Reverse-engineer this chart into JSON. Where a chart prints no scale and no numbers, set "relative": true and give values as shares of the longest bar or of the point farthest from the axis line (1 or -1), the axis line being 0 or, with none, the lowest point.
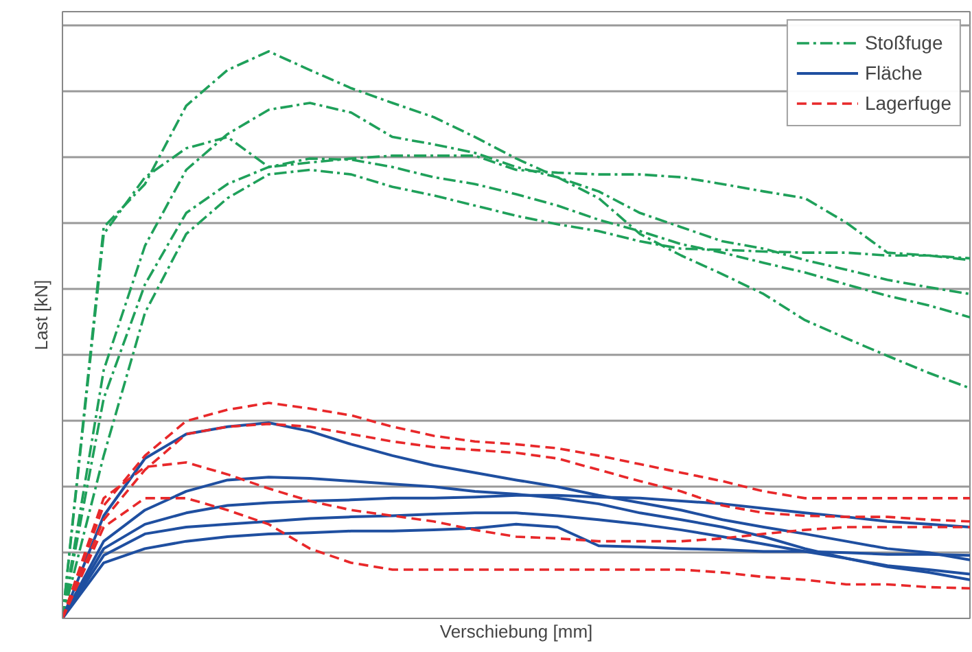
{
  "chart_data": {
    "type": "line",
    "relative": true,
    "xlabel": "Verschiebung [mm]",
    "ylabel": "Last [kN]",
    "grid": "y",
    "legend": "top right",
    "marker": "none",
    "categories": [
      null,
      null,
      null,
      null,
      null,
      null,
      null,
      null,
      null,
      null,
      null,
      null,
      null,
      null,
      null,
      null,
      null,
      null,
      null,
      null,
      null,
      null,
      null
    ],
    "series": [
      {
        "name": "Stoßfuge",
        "color": "#1fa05a",
        "line_style": "dashdot",
        "values": [
          0,
          0.69,
          0.766,
          0.904,
          0.967,
          1.0,
          0.967,
          0.935,
          0.909,
          0.884,
          0.849,
          0.811,
          0.778,
          0.741,
          0.678,
          0.64,
          0.607,
          0.572,
          0.526,
          0.494,
          0.463,
          0.433,
          0.406
        ]
      },
      {
        "color": "#1fa05a",
        "line_style": "dashdot",
        "values": [
          0,
          0.438,
          0.657,
          0.791,
          0.854,
          0.897,
          0.909,
          0.892,
          0.849,
          0.836,
          0.821,
          0.796,
          0.778,
          0.753,
          0.715,
          0.69,
          0.665,
          0.652,
          0.632,
          0.615,
          0.597,
          0.584,
          0.572
        ]
      },
      {
        "color": "#1fa05a",
        "line_style": "dashdot",
        "values": [
          0,
          0.678,
          0.778,
          0.829,
          0.849,
          0.796,
          0.804,
          0.811,
          0.816,
          0.816,
          0.816,
          0.791,
          0.786,
          0.783,
          0.783,
          0.778,
          0.766,
          0.753,
          0.741,
          0.698,
          0.645,
          0.64,
          0.632
        ]
      },
      {
        "color": "#1fa05a",
        "line_style": "dashdot",
        "values": [
          0,
          0.388,
          0.589,
          0.715,
          0.766,
          0.796,
          0.811,
          0.809,
          0.796,
          0.778,
          0.766,
          0.748,
          0.728,
          0.703,
          0.683,
          0.66,
          0.645,
          0.627,
          0.61,
          0.589,
          0.569,
          0.552,
          0.531
        ]
      },
      {
        "color": "#1fa05a",
        "line_style": "dashdot",
        "values": [
          0,
          0.287,
          0.539,
          0.678,
          0.741,
          0.783,
          0.791,
          0.783,
          0.761,
          0.746,
          0.728,
          0.71,
          0.695,
          0.683,
          0.665,
          0.652,
          0.65,
          0.647,
          0.645,
          0.645,
          0.64,
          0.64,
          0.635
        ]
      },
      {
        "name": "Fläche",
        "color": "#1f4fa0",
        "line_style": "solid",
        "values": [
          0,
          0.181,
          0.282,
          0.325,
          0.338,
          0.345,
          0.33,
          0.307,
          0.287,
          0.27,
          0.257,
          0.244,
          0.232,
          0.217,
          0.204,
          0.191,
          0.174,
          0.161,
          0.149,
          0.136,
          0.123,
          0.116,
          0.103
        ]
      },
      {
        "color": "#1f4fa0",
        "line_style": "solid",
        "values": [
          0,
          0.136,
          0.191,
          0.224,
          0.244,
          0.249,
          0.247,
          0.242,
          0.237,
          0.232,
          0.224,
          0.219,
          0.212,
          0.202,
          0.186,
          0.174,
          0.161,
          0.144,
          0.123,
          0.106,
          0.091,
          0.081,
          0.068
        ]
      },
      {
        "color": "#1f4fa0",
        "line_style": "solid",
        "values": [
          0,
          0.123,
          0.166,
          0.186,
          0.199,
          0.204,
          0.207,
          0.209,
          0.212,
          0.212,
          0.214,
          0.217,
          0.217,
          0.214,
          0.212,
          0.207,
          0.202,
          0.194,
          0.186,
          0.179,
          0.171,
          0.166,
          0.161
        ]
      },
      {
        "color": "#1f4fa0",
        "line_style": "solid",
        "values": [
          0,
          0.111,
          0.149,
          0.161,
          0.166,
          0.171,
          0.176,
          0.179,
          0.181,
          0.184,
          0.186,
          0.186,
          0.181,
          0.174,
          0.166,
          0.156,
          0.144,
          0.131,
          0.118,
          0.106,
          0.093,
          0.086,
          0.078
        ]
      },
      {
        "color": "#1f4fa0",
        "line_style": "solid",
        "values": [
          0,
          0.098,
          0.123,
          0.136,
          0.144,
          0.149,
          0.151,
          0.154,
          0.154,
          0.156,
          0.159,
          0.166,
          0.161,
          0.128,
          0.126,
          0.123,
          0.121,
          0.118,
          0.118,
          0.116,
          0.113,
          0.113,
          0.111
        ]
      },
      {
        "name": "Lagerfuge",
        "color": "#e8282a",
        "line_style": "dashed",
        "values": [
          0,
          0.199,
          0.287,
          0.348,
          0.368,
          0.38,
          0.37,
          0.358,
          0.338,
          0.322,
          0.312,
          0.307,
          0.3,
          0.287,
          0.272,
          0.257,
          0.242,
          0.224,
          0.212,
          0.212,
          0.212,
          0.212,
          0.212
        ]
      },
      {
        "color": "#e8282a",
        "line_style": "dashed",
        "values": [
          0,
          0.174,
          0.262,
          0.325,
          0.338,
          0.343,
          0.338,
          0.325,
          0.312,
          0.302,
          0.297,
          0.292,
          0.282,
          0.262,
          0.242,
          0.224,
          0.199,
          0.186,
          0.181,
          0.179,
          0.179,
          0.174,
          0.171
        ]
      },
      {
        "color": "#e8282a",
        "line_style": "dashed",
        "values": [
          0,
          0.212,
          0.267,
          0.275,
          0.254,
          0.229,
          0.207,
          0.191,
          0.181,
          0.171,
          0.156,
          0.144,
          0.141,
          0.136,
          0.136,
          0.136,
          0.141,
          0.149,
          0.156,
          0.161,
          0.161,
          0.161,
          0.161
        ]
      },
      {
        "color": "#e8282a",
        "line_style": "dashed",
        "values": [
          0,
          0.161,
          0.212,
          0.212,
          0.191,
          0.166,
          0.123,
          0.098,
          0.086,
          0.086,
          0.086,
          0.086,
          0.086,
          0.086,
          0.086,
          0.086,
          0.081,
          0.073,
          0.068,
          0.06,
          0.06,
          0.055,
          0.053
        ]
      }
    ]
  }
}
